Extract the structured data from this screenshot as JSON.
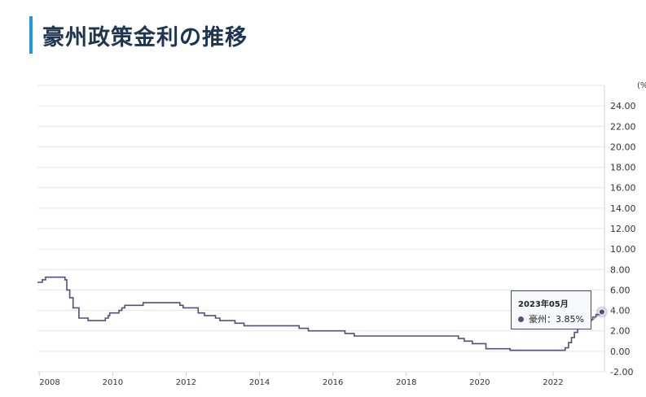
{
  "page_title": "豪州政策金利の推移",
  "tooltip": {
    "date": "2023年05月",
    "series": "豪州",
    "sep": "：",
    "value": "3.85%"
  },
  "colors": {
    "line": "#5b4a7a",
    "accent": "#1f9ad6",
    "title": "#1e3550",
    "grid": "#e6e6e6"
  },
  "chart_data": {
    "type": "line",
    "title": "",
    "xlabel": "",
    "ylabel": "(%",
    "x_ticks": [
      "2008",
      "2010",
      "2012",
      "2014",
      "2016",
      "2018",
      "2020",
      "2022"
    ],
    "y_ticks": [
      "24.00",
      "22.00",
      "20.00",
      "18.00",
      "16.00",
      "14.00",
      "12.00",
      "10.00",
      "8.00",
      "6.00",
      "4.00",
      "2.00",
      "0.00",
      "-2.00"
    ],
    "xlim": [
      2007.95,
      2023.4
    ],
    "ylim": [
      -2,
      26
    ],
    "grid": true,
    "step": true,
    "series": [
      {
        "name": "豪州",
        "points": [
          [
            2007.95,
            6.75
          ],
          [
            2008.08,
            7.0
          ],
          [
            2008.17,
            7.25
          ],
          [
            2008.7,
            7.0
          ],
          [
            2008.75,
            6.0
          ],
          [
            2008.83,
            5.25
          ],
          [
            2008.92,
            4.25
          ],
          [
            2009.08,
            3.25
          ],
          [
            2009.33,
            3.0
          ],
          [
            2009.8,
            3.25
          ],
          [
            2009.88,
            3.5
          ],
          [
            2009.92,
            3.75
          ],
          [
            2010.17,
            4.0
          ],
          [
            2010.25,
            4.25
          ],
          [
            2010.33,
            4.5
          ],
          [
            2010.83,
            4.75
          ],
          [
            2011.83,
            4.5
          ],
          [
            2011.92,
            4.25
          ],
          [
            2012.33,
            3.75
          ],
          [
            2012.5,
            3.5
          ],
          [
            2012.8,
            3.25
          ],
          [
            2012.92,
            3.0
          ],
          [
            2013.33,
            2.75
          ],
          [
            2013.58,
            2.5
          ],
          [
            2015.08,
            2.25
          ],
          [
            2015.33,
            2.0
          ],
          [
            2016.33,
            1.75
          ],
          [
            2016.58,
            1.5
          ],
          [
            2019.42,
            1.25
          ],
          [
            2019.58,
            1.0
          ],
          [
            2019.8,
            0.75
          ],
          [
            2020.17,
            0.25
          ],
          [
            2020.83,
            0.1
          ],
          [
            2022.33,
            0.35
          ],
          [
            2022.42,
            0.85
          ],
          [
            2022.5,
            1.35
          ],
          [
            2022.58,
            1.85
          ],
          [
            2022.67,
            2.35
          ],
          [
            2022.75,
            2.6
          ],
          [
            2022.83,
            2.85
          ],
          [
            2022.92,
            3.1
          ],
          [
            2023.08,
            3.35
          ],
          [
            2023.17,
            3.6
          ],
          [
            2023.33,
            3.85
          ]
        ]
      }
    ],
    "highlight": {
      "x": 2023.33,
      "y": 3.85
    }
  }
}
